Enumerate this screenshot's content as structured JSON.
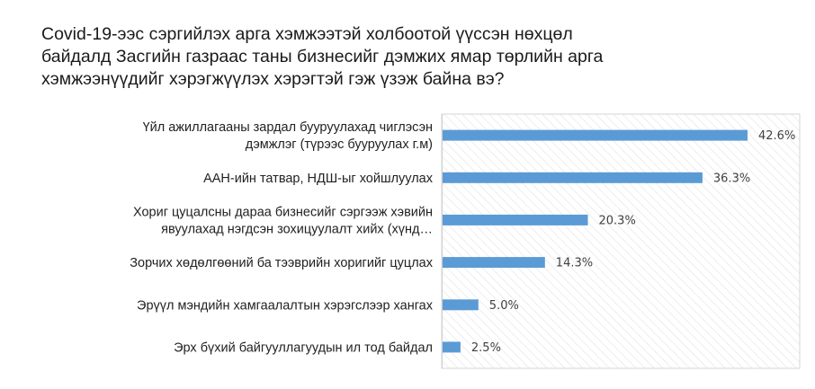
{
  "title_lines": [
    "Covid-19-ээс сэргийлэх арга хэмжээтэй холбоотой үүссэн нөхцөл",
    "байдалд Засгийн газраас таны бизнесийг дэмжих ямар төрлийн арга",
    "хэмжээнүүдийг хэрэгжүүлэх  хэрэгтэй гэж үзэж байна вэ?"
  ],
  "chart_data": {
    "type": "bar",
    "orientation": "horizontal",
    "categories": [
      [
        "Үйл ажиллагааны зардал бууруулахад чиглэсэн",
        "дэмжлэг (түрээс бууруулах г.м)"
      ],
      [
        "ААН-ийн  татвар, НДШ-ыг хойшлуулах"
      ],
      [
        "Хориг цуцалсны дараа бизнесийг сэргээж хэвийн",
        "явуулахад нэгдсэн зохицуулалт хийх (хүнд…"
      ],
      [
        "Зорчих хөдөлгөөний ба тээврийн хоригийг цуцлах"
      ],
      [
        "Эрүүл мэндийн хамгаалалтын хэрэгслээр хангах"
      ],
      [
        "Эрх бүхий байгууллагуудын ил тод байдал"
      ]
    ],
    "values": [
      42.6,
      36.3,
      20.3,
      14.3,
      5.0,
      2.5
    ],
    "value_labels": [
      "42.6%",
      "36.3%",
      "20.3%",
      "14.3%",
      "5.0%",
      "2.5%"
    ],
    "xlim": [
      0,
      50
    ],
    "bar_color": "#5b9bd5",
    "plot_background": "hatched",
    "grid": false,
    "legend": "none"
  }
}
